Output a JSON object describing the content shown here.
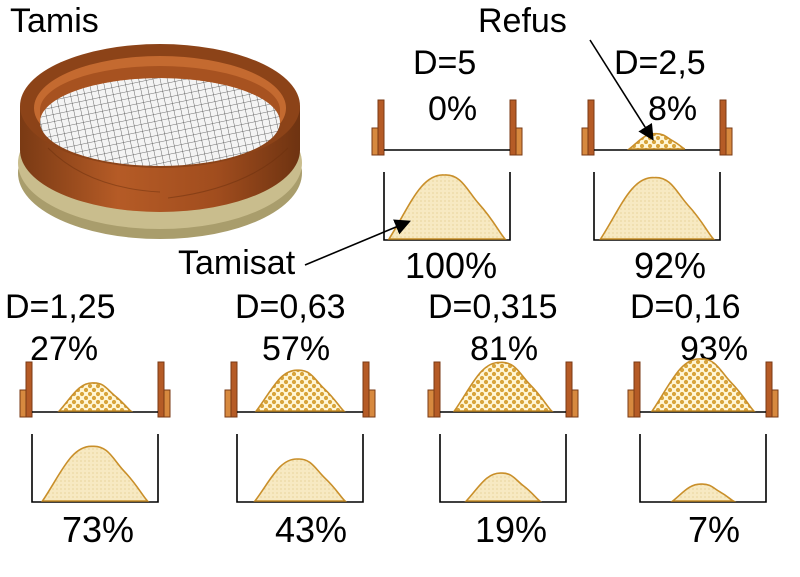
{
  "title": "Tamis",
  "labels": {
    "refus": "Refus",
    "tamisat": "Tamisat"
  },
  "colors": {
    "wood_dark": "#7a3a14",
    "wood_mid": "#b55b26",
    "wood_light": "#d7893f",
    "base": "#b9ad7c",
    "sand_fill": "#f6e7bd",
    "sand_edge": "#c98f2a",
    "refus_fill": "#e0b14a"
  },
  "stages": [
    {
      "d_label": "D=5",
      "refus_pct": "0%",
      "tamisat_pct": "100%",
      "refus": 0,
      "tamisat": 1.0
    },
    {
      "d_label": "D=2,5",
      "refus_pct": "8%",
      "tamisat_pct": "92%",
      "refus": 0.08,
      "tamisat": 0.92
    },
    {
      "d_label": "D=1,25",
      "refus_pct": "27%",
      "tamisat_pct": "73%",
      "refus": 0.27,
      "tamisat": 0.73
    },
    {
      "d_label": "D=0,63",
      "refus_pct": "57%",
      "tamisat_pct": "43%",
      "refus": 0.57,
      "tamisat": 0.43
    },
    {
      "d_label": "D=0,315",
      "refus_pct": "81%",
      "tamisat_pct": "19%",
      "refus": 0.81,
      "tamisat": 0.19
    },
    {
      "d_label": "D=0,16",
      "refus_pct": "93%",
      "tamisat_pct": "7%",
      "refus": 0.93,
      "tamisat": 0.07
    }
  ]
}
